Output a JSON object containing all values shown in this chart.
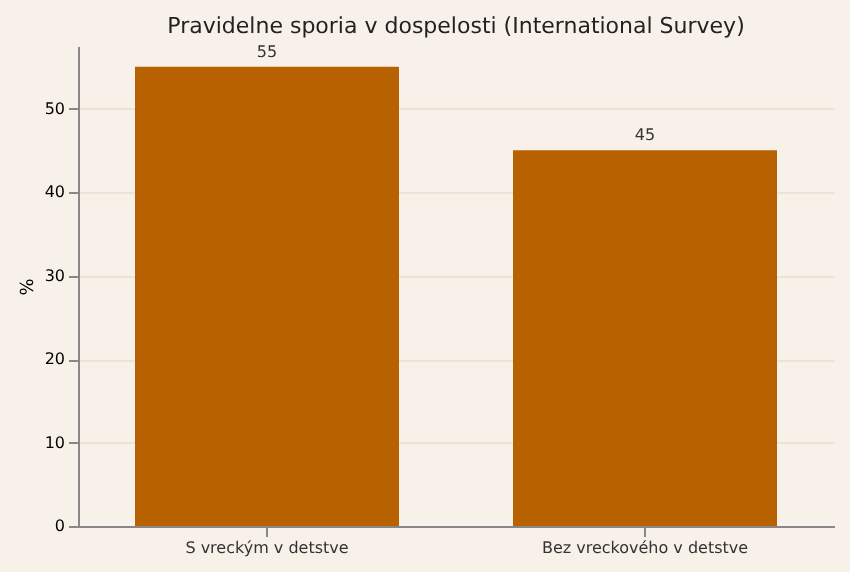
{
  "chart_data": {
    "type": "bar",
    "title": "Pravidelne sporia v dospelosti (International Survey)",
    "ylabel": "%",
    "categories": [
      "S vreckým v detstve",
      "Bez vreckového v detstve"
    ],
    "values": [
      55,
      45
    ],
    "color": "#b86100",
    "data_labels": true,
    "ylim": [
      0,
      57.5
    ],
    "yticks": [
      0,
      10,
      20,
      30,
      40,
      50
    ],
    "grid": "y"
  }
}
